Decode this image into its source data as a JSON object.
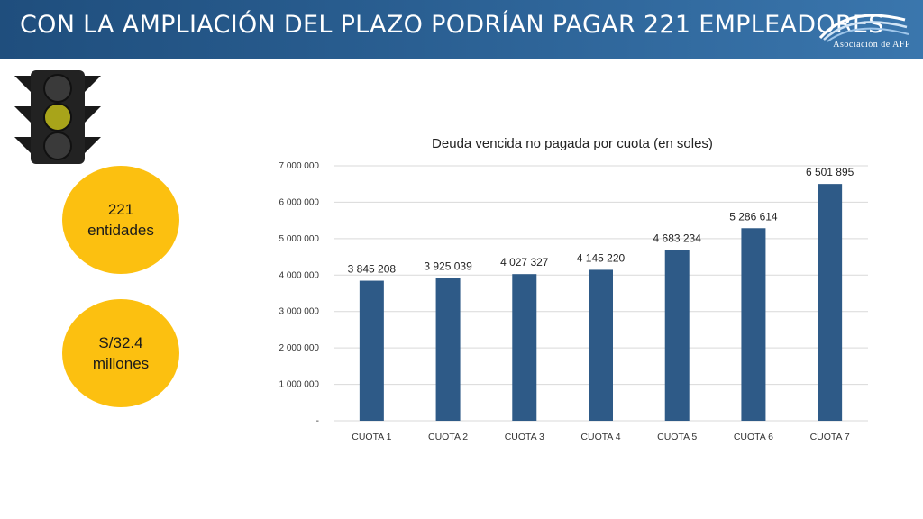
{
  "header": {
    "title": "CON LA AMPLIACIÓN DEL PLAZO PODRÍAN PAGAR 221 EMPLEADORES",
    "logo_text": "Asociación de AFP",
    "background": "#2a5f92"
  },
  "traffic_light": {
    "icon": "traffic-light-icon",
    "active_light": "yellow"
  },
  "stats": [
    {
      "line1": "221",
      "line2": "entidades",
      "color": "#fcc010"
    },
    {
      "line1": "S/32.4",
      "line2": "millones",
      "color": "#fcc010"
    }
  ],
  "chart_data": {
    "type": "bar",
    "title": "Deuda vencida no pagada por cuota (en soles)",
    "categories": [
      "CUOTA 1",
      "CUOTA 2",
      "CUOTA 3",
      "CUOTA 4",
      "CUOTA 5",
      "CUOTA 6",
      "CUOTA 7"
    ],
    "values": [
      3845208,
      3925039,
      4027327,
      4145220,
      4683234,
      5286614,
      6501895
    ],
    "value_labels": [
      "3 845 208",
      "3 925 039",
      "4 027 327",
      "4 145 220",
      "4 683 234",
      "5 286 614",
      "6 501 895"
    ],
    "ylim": [
      0,
      7000000
    ],
    "yticks": [
      0,
      1000000,
      2000000,
      3000000,
      4000000,
      5000000,
      6000000,
      7000000
    ],
    "ytick_labels": [
      "-",
      "1 000 000",
      "2 000 000",
      "3 000 000",
      "4 000 000",
      "5 000 000",
      "6 000 000",
      "7 000 000"
    ],
    "xlabel": "",
    "ylabel": "",
    "grid": true,
    "bar_color": "#2e5a87"
  }
}
